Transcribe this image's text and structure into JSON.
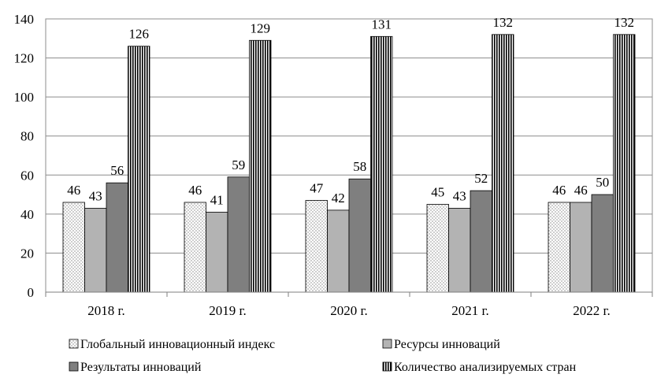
{
  "chart_data": {
    "type": "bar",
    "categories": [
      "2018 г.",
      "2019 г.",
      "2020 г.",
      "2021 г.",
      "2022 г."
    ],
    "series": [
      {
        "name": "Глобальный инновационный индекс",
        "values": [
          46,
          46,
          47,
          45,
          46
        ],
        "pattern": "dots",
        "color": "#ffffff"
      },
      {
        "name": "Ресурсы инноваций",
        "values": [
          43,
          41,
          42,
          43,
          46
        ],
        "pattern": "solid",
        "color": "#b3b3b3"
      },
      {
        "name": "Результаты инноваций",
        "values": [
          56,
          59,
          58,
          52,
          50
        ],
        "pattern": "solid",
        "color": "#7f7f7f"
      },
      {
        "name": "Количество анализируемых стран",
        "values": [
          126,
          129,
          131,
          132,
          132
        ],
        "pattern": "vertical-lines",
        "color": "#ffffff"
      }
    ],
    "data_labels": [
      [
        "46",
        "43",
        "56",
        "126"
      ],
      [
        "46",
        "41",
        "59",
        "129"
      ],
      [
        "47",
        "42",
        "58",
        "131"
      ],
      [
        "45",
        "43",
        "52",
        "132"
      ],
      [
        "46",
        "46",
        "50",
        "132"
      ]
    ],
    "y_ticks": [
      "0",
      "20",
      "40",
      "60",
      "80",
      "100",
      "120",
      "140"
    ],
    "ylim": [
      0,
      140
    ],
    "grid": true,
    "legend_position": "bottom",
    "title": "",
    "xlabel": "",
    "ylabel": ""
  }
}
